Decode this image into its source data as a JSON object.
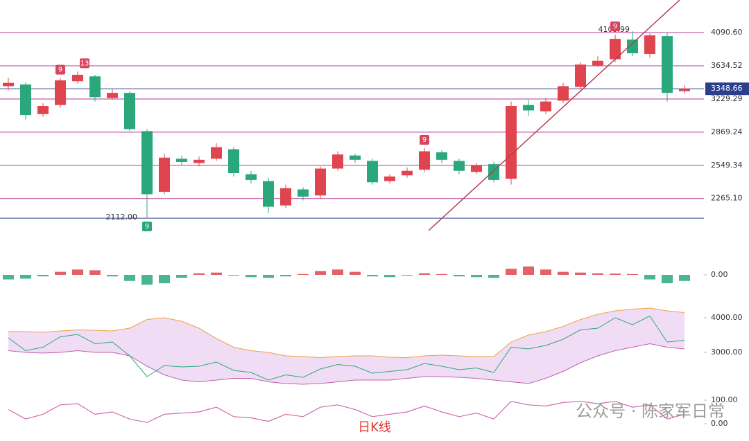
{
  "chart_data": [
    {
      "type": "candlestick",
      "open": [
        3380,
        3400,
        3060,
        3160,
        3440,
        3500,
        3240,
        3300,
        2880,
        2320,
        2610,
        2570,
        2610,
        2700,
        2470,
        2410,
        2210,
        2340,
        2290,
        2520,
        2640,
        2590,
        2410,
        2460,
        2510,
        2670,
        2590,
        2490,
        2560,
        2430,
        3160,
        3090,
        3210,
        3370,
        3640,
        3720,
        3990,
        3790,
        4040,
        3320
      ],
      "high": [
        3480,
        3430,
        3180,
        3480,
        3560,
        3520,
        3340,
        3320,
        2900,
        2660,
        2640,
        2630,
        2760,
        2720,
        2500,
        2440,
        2380,
        2360,
        2540,
        2680,
        2660,
        2610,
        2470,
        2530,
        2710,
        2690,
        2610,
        2570,
        2580,
        3200,
        3220,
        3240,
        3420,
        3680,
        3760,
        4060,
        4109.99,
        4080,
        4090,
        3390
      ],
      "low": [
        3330,
        3000,
        3030,
        3130,
        3410,
        3200,
        3220,
        2880,
        2112,
        2300,
        2550,
        2540,
        2590,
        2450,
        2390,
        2150,
        2190,
        2250,
        2260,
        2500,
        2570,
        2380,
        2390,
        2440,
        2490,
        2570,
        2470,
        2470,
        2400,
        2380,
        3040,
        3060,
        3180,
        3340,
        3620,
        3680,
        3760,
        3740,
        3200,
        3290
      ],
      "close": [
        3420,
        3050,
        3150,
        3450,
        3520,
        3250,
        3300,
        2900,
        2300,
        2620,
        2580,
        2600,
        2720,
        2480,
        2420,
        2200,
        2350,
        2280,
        2520,
        2650,
        2600,
        2400,
        2450,
        2500,
        2680,
        2600,
        2500,
        2550,
        2420,
        3150,
        3100,
        3200,
        3380,
        3650,
        3700,
        4000,
        3800,
        4050,
        3300,
        3348.66
      ],
      "up_color": "#e0454f",
      "down_color": "#2aa87c",
      "level_color": "#b5359b",
      "log_scale": true,
      "ylim": [
        2011,
        4594
      ],
      "yticks": [
        {
          "value": 4090.6,
          "label": "4090.60"
        },
        {
          "value": 3634.52,
          "label": "3634.52"
        },
        {
          "value": 3229.29,
          "label": "3229.29"
        },
        {
          "value": 2869.24,
          "label": "2869.24"
        },
        {
          "value": 2549.34,
          "label": "2549.34"
        },
        {
          "value": 2265.1,
          "label": "2265.10"
        }
      ],
      "high_label": {
        "value": 4109.99,
        "label": "4109.99"
      },
      "low_label": {
        "value": 2112,
        "label": "2112.00"
      },
      "markers": [
        {
          "candle": 3,
          "label": "9",
          "color": "#d9455f"
        },
        {
          "candle": 4,
          "label": "13",
          "color": "#d9455f"
        },
        {
          "candle": 8,
          "label": "9",
          "color": "#2aa87c"
        },
        {
          "candle": 24,
          "label": "9",
          "color": "#d9455f"
        },
        {
          "candle": 35,
          "label": "9",
          "color": "#d9455f"
        }
      ],
      "footer_label": "日K线",
      "watermark": "公众号 · 陈家军日常"
    },
    {
      "type": "bar",
      "values": [
        -30,
        -25,
        -10,
        20,
        35,
        30,
        -10,
        -40,
        -65,
        -55,
        -20,
        10,
        15,
        -5,
        -15,
        -20,
        -10,
        5,
        25,
        35,
        20,
        -10,
        -15,
        -5,
        10,
        5,
        -10,
        -15,
        -20,
        40,
        55,
        35,
        20,
        15,
        10,
        8,
        5,
        -30,
        -55,
        -40
      ],
      "ylim": [
        -100,
        100
      ],
      "yticks": [
        {
          "value": 0,
          "label": "0.00"
        }
      ],
      "up_color": "#e0454f",
      "down_color": "#2aa87c"
    },
    {
      "type": "band",
      "upper": [
        3600,
        3600,
        3580,
        3620,
        3650,
        3640,
        3620,
        3700,
        3950,
        4000,
        3900,
        3700,
        3400,
        3150,
        3050,
        3000,
        2900,
        2880,
        2850,
        2880,
        2900,
        2900,
        2860,
        2850,
        2900,
        2920,
        2900,
        2880,
        2880,
        3300,
        3500,
        3600,
        3750,
        3950,
        4100,
        4200,
        4250,
        4280,
        4200,
        4150
      ],
      "lower": [
        3050,
        3000,
        2980,
        3000,
        3050,
        3000,
        3000,
        2900,
        2600,
        2350,
        2200,
        2150,
        2200,
        2250,
        2250,
        2150,
        2100,
        2080,
        2100,
        2150,
        2200,
        2200,
        2200,
        2250,
        2300,
        2300,
        2280,
        2250,
        2200,
        2150,
        2100,
        2250,
        2450,
        2700,
        2900,
        3050,
        3150,
        3250,
        3150,
        3100
      ],
      "ylim": [
        1980,
        4280
      ],
      "yticks": [
        {
          "value": 4000,
          "label": "4000.00"
        },
        {
          "value": 3000,
          "label": "3000.00"
        }
      ],
      "fill": "#f1dcf6",
      "upper_color": "#f0a040",
      "lower_color": "#c060b0",
      "price_color": "#2aa87c"
    },
    {
      "type": "line",
      "values": [
        60,
        20,
        40,
        80,
        85,
        40,
        50,
        20,
        5,
        40,
        45,
        50,
        70,
        30,
        25,
        10,
        40,
        30,
        70,
        80,
        60,
        30,
        40,
        50,
        75,
        50,
        30,
        45,
        20,
        95,
        80,
        75,
        90,
        95,
        85,
        95,
        70,
        80,
        20,
        40
      ],
      "ylim": [
        0,
        100
      ],
      "yticks": [
        {
          "value": 0,
          "label": "0.00"
        },
        {
          "value": 100,
          "label": "100.00"
        }
      ],
      "color": "#d06ab0"
    }
  ]
}
